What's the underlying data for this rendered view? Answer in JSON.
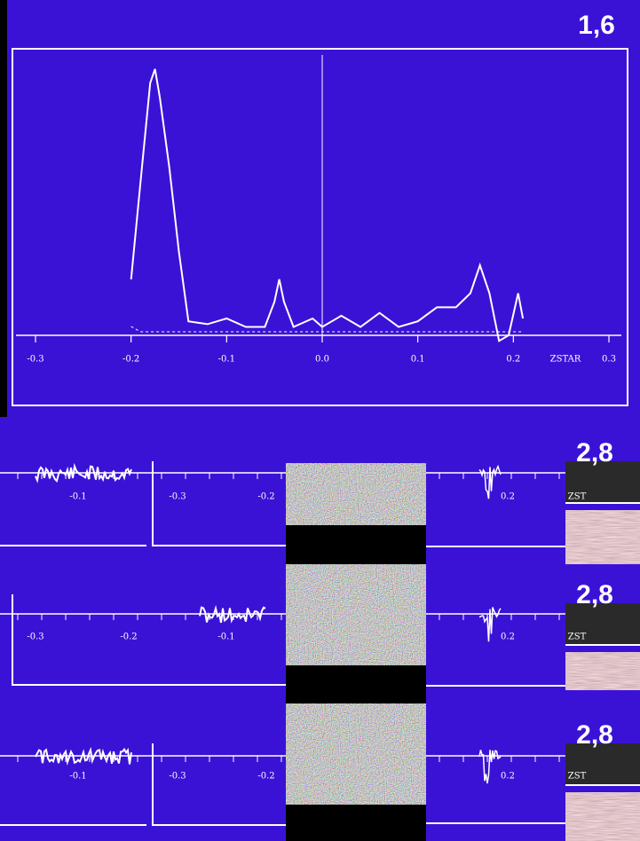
{
  "chart_data": {
    "type": "line",
    "annotation": "1,6",
    "xlabel": "ZSTAR",
    "xlim": [
      -0.3,
      0.3
    ],
    "ylim": [
      0,
      1
    ],
    "xticks": [
      -0.3,
      -0.2,
      -0.1,
      {
        "value": 0,
        "label": "0.0"
      },
      0.1,
      0.2,
      0.3
    ],
    "series": [
      {
        "color": "#ffffff",
        "x": [
          -0.2,
          -0.19,
          -0.18,
          -0.175,
          -0.17,
          -0.16,
          -0.15,
          -0.14,
          -0.12,
          -0.1,
          -0.08,
          -0.06,
          -0.05,
          -0.045,
          -0.04,
          -0.03,
          -0.01,
          0.0,
          0.02,
          0.04,
          0.06,
          0.08,
          0.1,
          0.12,
          0.14,
          0.155,
          0.165,
          0.175,
          0.185,
          0.195,
          0.205,
          0.21
        ],
        "values": [
          0.2,
          0.55,
          0.9,
          0.95,
          0.85,
          0.6,
          0.3,
          0.05,
          0.04,
          0.06,
          0.03,
          0.03,
          0.12,
          0.2,
          0.12,
          0.03,
          0.06,
          0.03,
          0.07,
          0.03,
          0.08,
          0.03,
          0.05,
          0.1,
          0.1,
          0.15,
          0.25,
          0.15,
          -0.02,
          0.0,
          0.15,
          0.06
        ]
      }
    ]
  },
  "panels": [
    {
      "label": "2,8",
      "ticks": [
        "-0.1",
        "-0.3",
        "-0.2",
        "0.2",
        "ZST"
      ]
    },
    {
      "label": "2,8",
      "ticks": [
        "-0.3",
        "-0.2",
        "-0.1",
        "0.2",
        "ZST"
      ]
    },
    {
      "label": "2,8",
      "ticks": [
        "-0.1",
        "-0.3",
        "-0.2",
        "0.2",
        "ZST"
      ]
    }
  ]
}
